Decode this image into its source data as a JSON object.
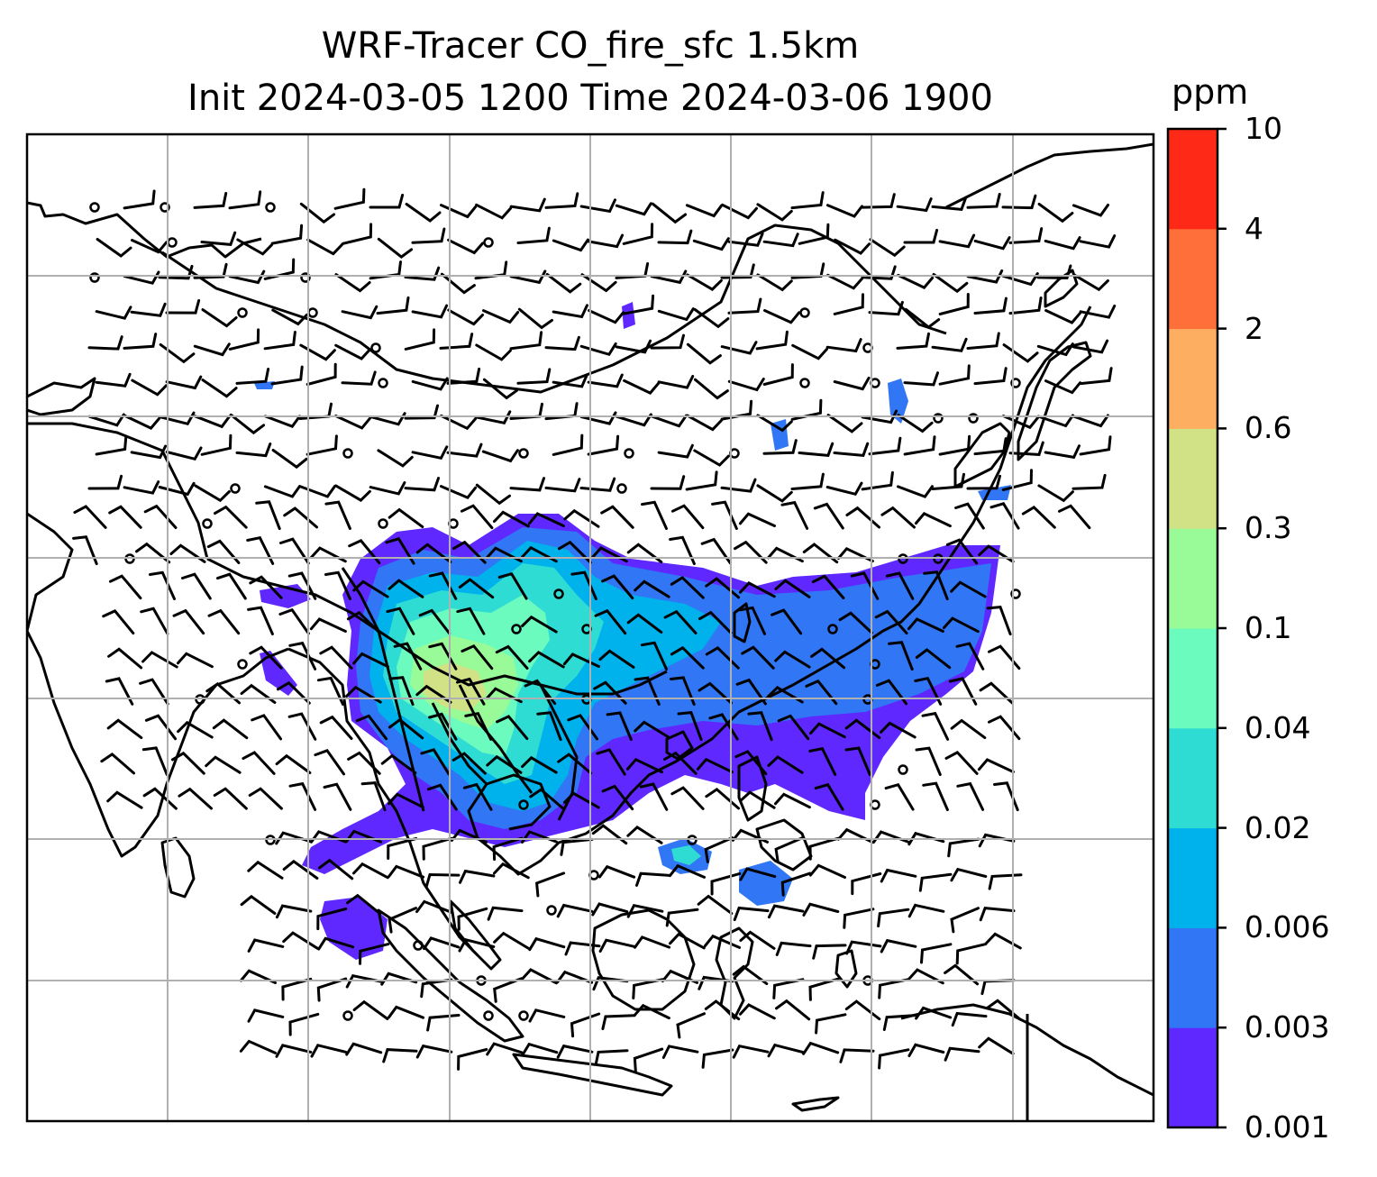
{
  "figure": {
    "title_line1": "WRF-Tracer CO_fire_sfc 1.5km",
    "title_line2": "Init 2024-03-05 1200 Time 2024-03-06 1900"
  },
  "colorbar": {
    "unit": "ppm",
    "levels": [
      "0.001",
      "0.003",
      "0.006",
      "0.02",
      "0.04",
      "0.1",
      "0.3",
      "0.6",
      "2",
      "4",
      "10"
    ],
    "colors": [
      "#5f28fe",
      "#3076f5",
      "#00b2ec",
      "#2fdcd4",
      "#6bfbbf",
      "#99fb97",
      "#d1e186",
      "#fdae60",
      "#fe6f3a",
      "#fe2a17"
    ]
  },
  "map": {
    "region": "Southeast and East Asia",
    "gridlines": true,
    "wind_barbs": true,
    "coastlines": true,
    "borders": true,
    "plume_levels_shown": [
      "0.001",
      "0.003",
      "0.006",
      "0.02",
      "0.04",
      "0.1",
      "0.3"
    ]
  }
}
